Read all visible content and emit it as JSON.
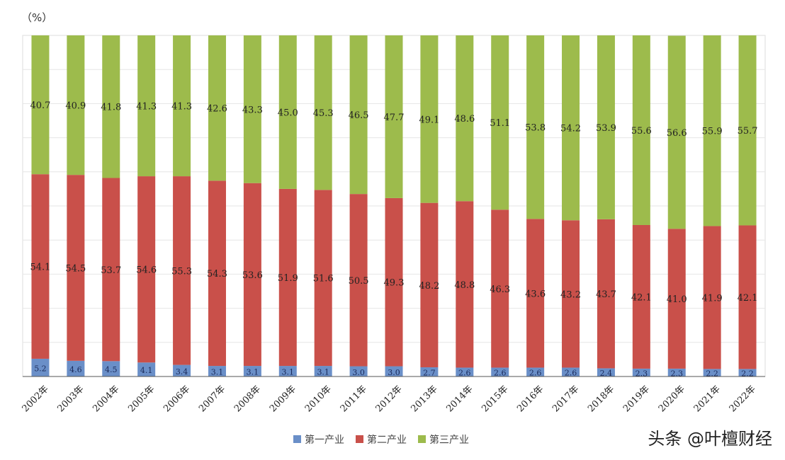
{
  "chart_data": {
    "type": "bar",
    "stacked": true,
    "title": "",
    "unit_label": "（%）",
    "ylim": [
      0,
      100
    ],
    "grid": true,
    "legend_position": "bottom",
    "categories": [
      "2002年",
      "2003年",
      "2004年",
      "2005年",
      "2006年",
      "2007年",
      "2008年",
      "2009年",
      "2010年",
      "2011年",
      "2012年",
      "2013年",
      "2014年",
      "2015年",
      "2016年",
      "2017年",
      "2018年",
      "2019年",
      "2020年",
      "2021年",
      "2022年"
    ],
    "series": [
      {
        "name": "第一产业",
        "color": "#6a8fc8",
        "values": [
          5.2,
          4.6,
          4.5,
          4.1,
          3.4,
          3.1,
          3.1,
          3.1,
          3.1,
          3.0,
          3.0,
          2.7,
          2.6,
          2.6,
          2.6,
          2.6,
          2.4,
          2.3,
          2.3,
          2.2,
          2.2
        ]
      },
      {
        "name": "第二产业",
        "color": "#c9504a",
        "values": [
          54.1,
          54.5,
          53.7,
          54.6,
          55.3,
          54.3,
          53.6,
          51.9,
          51.6,
          50.5,
          49.3,
          48.2,
          48.8,
          46.3,
          43.6,
          43.2,
          43.7,
          42.1,
          41.0,
          41.9,
          42.1
        ]
      },
      {
        "name": "第三产业",
        "color": "#9dbb4c",
        "values": [
          40.7,
          40.9,
          41.8,
          41.3,
          41.3,
          42.6,
          43.3,
          45.0,
          45.3,
          46.5,
          47.7,
          49.1,
          48.6,
          51.1,
          53.8,
          54.2,
          53.9,
          55.6,
          56.6,
          55.9,
          55.7
        ]
      }
    ]
  },
  "watermark": "头条 @叶檀财经"
}
